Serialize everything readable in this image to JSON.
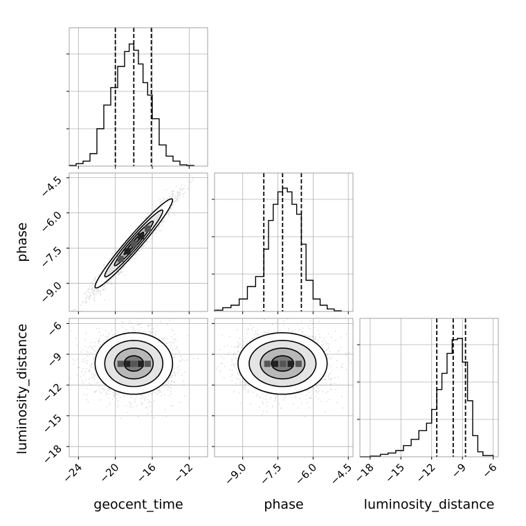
{
  "chart_data": {
    "type": "corner",
    "parameters": [
      "geocent_time",
      "phase",
      "luminosity_distance"
    ],
    "axis_labels": {
      "geocent_time": "geocent_time",
      "phase": "phase",
      "luminosity_distance": "luminosity_distance"
    },
    "ranges": {
      "geocent_time": [
        -25.0,
        -10.0
      ],
      "phase": [
        -10.2,
        -4.3
      ],
      "luminosity_distance": [
        -19.0,
        -5.5
      ]
    },
    "ticks": {
      "geocent_time": {
        "values": [
          -24,
          -20,
          -16,
          -12
        ],
        "labels": [
          "−24",
          "−20",
          "−16",
          "−12"
        ]
      },
      "phase": {
        "values": [
          -9.0,
          -7.5,
          -6.0,
          -4.5
        ],
        "labels": [
          "−9.0",
          "−7.5",
          "−6.0",
          "−4.5"
        ]
      },
      "luminosity_distance": {
        "values": [
          -18,
          -15,
          -12,
          -9,
          -6
        ],
        "labels": [
          "−18",
          "−15",
          "−12",
          "−9",
          "−6"
        ]
      }
    },
    "quantiles": {
      "geocent_time": [
        -20.0,
        -18.0,
        -16.1
      ],
      "phase": [
        -8.1,
        -7.3,
        -6.5
      ],
      "luminosity_distance": [
        -11.5,
        -9.9,
        -8.7
      ]
    },
    "histograms": {
      "geocent_time": {
        "edges": [
          -25.0,
          -24.25,
          -23.5,
          -22.75,
          -22.0,
          -21.25,
          -20.5,
          -19.75,
          -19.0,
          -18.5,
          -18.0,
          -17.5,
          -17.0,
          -16.5,
          -16.0,
          -15.25,
          -14.5,
          -13.75,
          -13.0,
          -12.25,
          -11.5
        ],
        "counts": [
          0.005,
          0.02,
          0.04,
          0.1,
          0.3,
          0.49,
          0.63,
          0.8,
          0.92,
          0.98,
          0.93,
          0.82,
          0.67,
          0.57,
          0.38,
          0.17,
          0.08,
          0.04,
          0.01,
          0.005
        ]
      },
      "phase": {
        "edges": [
          -10.2,
          -9.85,
          -9.5,
          -9.15,
          -8.8,
          -8.45,
          -8.1,
          -7.9,
          -7.7,
          -7.5,
          -7.3,
          -7.1,
          -6.9,
          -6.7,
          -6.5,
          -6.3,
          -6.0,
          -5.7,
          -5.4,
          -5.1,
          -4.8
        ],
        "counts": [
          0.01,
          0.03,
          0.05,
          0.1,
          0.2,
          0.28,
          0.5,
          0.73,
          0.86,
          0.96,
          0.99,
          0.96,
          0.86,
          0.78,
          0.54,
          0.25,
          0.1,
          0.05,
          0.02,
          0.005
        ]
      },
      "luminosity_distance": {
        "edges": [
          -19.0,
          -18.0,
          -17.0,
          -16.25,
          -15.5,
          -14.75,
          -14.0,
          -13.25,
          -12.5,
          -12.0,
          -11.5,
          -11.0,
          -10.5,
          -10.0,
          -9.5,
          -9.0,
          -8.5,
          -8.0,
          -7.5,
          -7.0,
          -6.0
        ],
        "counts": [
          0.0,
          0.005,
          0.02,
          0.03,
          0.05,
          0.09,
          0.14,
          0.21,
          0.27,
          0.38,
          0.54,
          0.67,
          0.83,
          0.94,
          0.95,
          0.76,
          0.45,
          0.17,
          0.04,
          0.01
        ]
      }
    },
    "pairs": [
      {
        "x": "geocent_time",
        "y": "phase",
        "center": [
          -18.0,
          -7.3
        ],
        "sd": [
          2.1,
          0.95
        ],
        "corr": 0.97
      },
      {
        "x": "geocent_time",
        "y": "luminosity_distance",
        "center": [
          -18.0,
          -9.9
        ],
        "sd": [
          2.1,
          1.5
        ],
        "corr": 0.0
      },
      {
        "x": "phase",
        "y": "luminosity_distance",
        "center": [
          -7.3,
          -9.9
        ],
        "sd": [
          0.95,
          1.5
        ],
        "corr": 0.0
      }
    ],
    "contour_levels_sigma": [
      0.5,
      1.0,
      1.5,
      2.0
    ],
    "grid": true
  }
}
